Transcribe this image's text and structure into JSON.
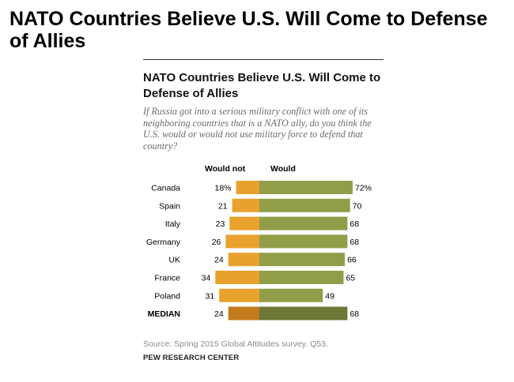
{
  "page": {
    "title": "NATO Countries Believe U.S. Will Come to Defense of Allies"
  },
  "chart_data": {
    "type": "bar",
    "title": "NATO Countries Believe U.S. Will Come to Defense of Allies",
    "subtitle": "If Russia got into a serious military conflict with one of its neighboring countries that is a NATO ally, do you think the U.S. would or would not use military force to defend that country?",
    "categories": [
      "Canada",
      "Spain",
      "Italy",
      "Germany",
      "UK",
      "France",
      "Poland",
      "MEDIAN"
    ],
    "series": [
      {
        "name": "Would not",
        "values": [
          18,
          21,
          23,
          26,
          24,
          34,
          31,
          24
        ],
        "labels": [
          "18%",
          "21",
          "23",
          "26",
          "24",
          "34",
          "31",
          "24"
        ],
        "color": "#e9a12e",
        "highlight_color": "#c27a1b"
      },
      {
        "name": "Would",
        "values": [
          72,
          70,
          68,
          68,
          66,
          65,
          49,
          68
        ],
        "labels": [
          "72%",
          "70",
          "68",
          "68",
          "66",
          "65",
          "49",
          "68"
        ],
        "color": "#929d49",
        "highlight_color": "#6d7837"
      }
    ],
    "highlight_category": "MEDIAN",
    "source": "Source: Spring 2015 Global Attitudes survey. Q53.",
    "organization": "PEW RESEARCH CENTER"
  }
}
